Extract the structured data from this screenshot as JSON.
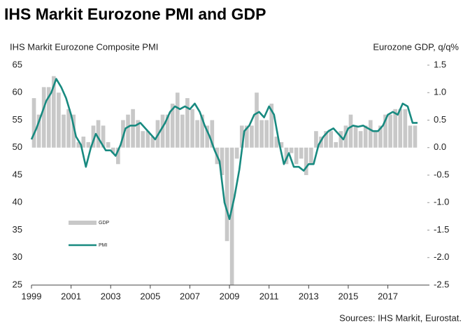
{
  "chart_data": {
    "type": "bar-line",
    "title": "IHS Markit Eurozone PMI and GDP",
    "y_label": "IHS Markit Eurozone Composite PMI",
    "y2_label": "Eurozone GDP, q/q%",
    "source": "Sources: IHS Markit, Eurostat.",
    "xlim": [
      1999,
      2019.1
    ],
    "xticks": [
      1999,
      2001,
      2003,
      2005,
      2007,
      2009,
      2011,
      2013,
      2015,
      2017
    ],
    "ylim": [
      25,
      65
    ],
    "yticks": [
      25,
      30,
      35,
      40,
      45,
      50,
      55,
      60,
      65
    ],
    "y2lim": [
      -2.5,
      1.5
    ],
    "y2ticks": [
      {
        "value": -2.5,
        "label": "-2.5"
      },
      {
        "value": -2,
        "label": "-2.0"
      },
      {
        "value": -1.5,
        "label": "-1.5"
      },
      {
        "value": -1,
        "label": "-1.0"
      },
      {
        "value": -0.5,
        "label": "-0.5"
      },
      {
        "value": 0,
        "label": "0.0"
      },
      {
        "value": 0.5,
        "label": "0.5"
      },
      {
        "value": 1,
        "label": "1.0"
      },
      {
        "value": 1.5,
        "label": "1.5"
      }
    ],
    "series": [
      {
        "name": "GDP",
        "kind": "bar",
        "axis": "y2",
        "color": "#c8c8c8",
        "x": [
          1999.125,
          1999.375,
          1999.625,
          1999.875,
          2000.125,
          2000.375,
          2000.625,
          2000.875,
          2001.125,
          2001.375,
          2001.625,
          2001.875,
          2002.125,
          2002.375,
          2002.625,
          2002.875,
          2003.125,
          2003.375,
          2003.625,
          2003.875,
          2004.125,
          2004.375,
          2004.625,
          2004.875,
          2005.125,
          2005.375,
          2005.625,
          2005.875,
          2006.125,
          2006.375,
          2006.625,
          2006.875,
          2007.125,
          2007.375,
          2007.625,
          2007.875,
          2008.125,
          2008.375,
          2008.625,
          2008.875,
          2009.125,
          2009.375,
          2009.625,
          2009.875,
          2010.125,
          2010.375,
          2010.625,
          2010.875,
          2011.125,
          2011.375,
          2011.625,
          2011.875,
          2012.125,
          2012.375,
          2012.625,
          2012.875,
          2013.125,
          2013.375,
          2013.625,
          2013.875,
          2014.125,
          2014.375,
          2014.625,
          2014.875,
          2015.125,
          2015.375,
          2015.625,
          2015.875,
          2016.125,
          2016.375,
          2016.625,
          2016.875,
          2017.125,
          2017.375,
          2017.625,
          2017.875,
          2018.125,
          2018.375
        ],
        "values": [
          0.9,
          0.6,
          1.1,
          1.1,
          1.3,
          1.0,
          0.6,
          0.7,
          0.6,
          0.1,
          0.2,
          0.1,
          0.4,
          0.5,
          0.4,
          0.1,
          -0.1,
          -0.3,
          0.5,
          0.6,
          0.7,
          0.5,
          0.3,
          0.3,
          0.2,
          0.5,
          0.6,
          0.6,
          0.8,
          1.0,
          0.6,
          0.9,
          0.7,
          0.5,
          0.6,
          0.4,
          0.5,
          -0.3,
          -0.5,
          -1.7,
          -2.5,
          -0.2,
          0.4,
          0.4,
          0.4,
          1.0,
          0.5,
          0.5,
          0.8,
          0.2,
          0.1,
          -0.3,
          -0.1,
          -0.3,
          -0.2,
          -0.5,
          -0.3,
          0.3,
          0.2,
          0.3,
          0.3,
          0.1,
          0.3,
          0.4,
          0.6,
          0.4,
          0.3,
          0.4,
          0.5,
          0.3,
          0.4,
          0.6,
          0.6,
          0.7,
          0.7,
          0.7,
          0.4,
          0.4
        ]
      },
      {
        "name": "PMI",
        "kind": "line",
        "color": "#188a80",
        "x": [
          1999.0,
          1999.25,
          1999.5,
          1999.75,
          2000.0,
          2000.25,
          2000.5,
          2000.75,
          2001.0,
          2001.25,
          2001.5,
          2001.75,
          2002.0,
          2002.25,
          2002.5,
          2002.75,
          2003.0,
          2003.25,
          2003.5,
          2003.75,
          2004.0,
          2004.25,
          2004.5,
          2004.75,
          2005.0,
          2005.25,
          2005.5,
          2005.75,
          2006.0,
          2006.25,
          2006.5,
          2006.75,
          2007.0,
          2007.25,
          2007.5,
          2007.75,
          2008.0,
          2008.25,
          2008.5,
          2008.75,
          2009.0,
          2009.25,
          2009.5,
          2009.75,
          2010.0,
          2010.25,
          2010.5,
          2010.75,
          2011.0,
          2011.25,
          2011.5,
          2011.75,
          2012.0,
          2012.25,
          2012.5,
          2012.75,
          2013.0,
          2013.25,
          2013.5,
          2013.75,
          2014.0,
          2014.25,
          2014.5,
          2014.75,
          2015.0,
          2015.25,
          2015.5,
          2015.75,
          2016.0,
          2016.25,
          2016.5,
          2016.75,
          2017.0,
          2017.25,
          2017.5,
          2017.75,
          2018.0,
          2018.25,
          2018.5
        ],
        "values": [
          51.5,
          53.5,
          56,
          58.5,
          60,
          62.5,
          61,
          59,
          56,
          52,
          50.5,
          46.5,
          50,
          52.5,
          51,
          49.5,
          49.5,
          48.5,
          50.5,
          53.5,
          54,
          54,
          54.5,
          53.5,
          52.5,
          51.5,
          53,
          54.5,
          56.5,
          57.5,
          57,
          57.5,
          57,
          58,
          56.5,
          54,
          52,
          49.5,
          47.5,
          40,
          37,
          41,
          46,
          53,
          54,
          56,
          56.5,
          55.5,
          57.5,
          56,
          51,
          47,
          49,
          46.5,
          46.5,
          45.8,
          47,
          47,
          50.5,
          52,
          53,
          53.5,
          52.5,
          51.5,
          53.5,
          54,
          53.8,
          54,
          53.5,
          53,
          53,
          54,
          56,
          56.5,
          56,
          58,
          57.5,
          54.5,
          54.5
        ]
      }
    ]
  }
}
